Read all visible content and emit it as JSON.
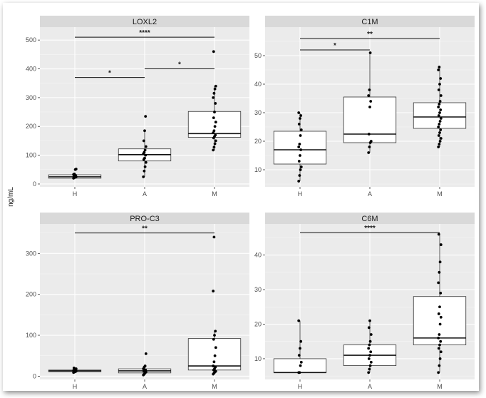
{
  "figure": {
    "ylabel": "ng/mL"
  },
  "chart_data": [
    {
      "type": "box",
      "title": "LOXL2",
      "categories": [
        "H",
        "A",
        "M"
      ],
      "ylim": [
        -10,
        545
      ],
      "yticks": [
        0,
        100,
        200,
        300,
        400,
        500
      ],
      "series": [
        {
          "category": "H",
          "q1": 20,
          "median": 25,
          "q3": 32,
          "whisker_low": 18,
          "whisker_high": 35,
          "points": [
            20,
            22,
            24,
            25,
            27,
            28,
            30,
            33,
            35,
            50,
            52
          ]
        },
        {
          "category": "A",
          "q1": 80,
          "median": 102,
          "q3": 122,
          "whisker_low": 25,
          "whisker_high": 185,
          "points": [
            25,
            45,
            60,
            75,
            85,
            90,
            100,
            105,
            110,
            118,
            130,
            150,
            185,
            235
          ]
        },
        {
          "category": "M",
          "q1": 162,
          "median": 175,
          "q3": 252,
          "whisker_low": 118,
          "whisker_high": 340,
          "points": [
            118,
            128,
            140,
            150,
            160,
            165,
            170,
            178,
            185,
            200,
            215,
            230,
            250,
            280,
            300,
            315,
            330,
            340,
            460
          ]
        }
      ],
      "significance": [
        {
          "from": "H",
          "to": "M",
          "label": "****",
          "y": 510
        },
        {
          "from": "H",
          "to": "A",
          "label": "*",
          "y": 370
        },
        {
          "from": "A",
          "to": "M",
          "label": "*",
          "y": 400
        }
      ]
    },
    {
      "type": "box",
      "title": "C1M",
      "categories": [
        "H",
        "A",
        "M"
      ],
      "ylim": [
        4,
        60
      ],
      "yticks": [
        10,
        20,
        30,
        40,
        50
      ],
      "series": [
        {
          "category": "H",
          "q1": 12,
          "median": 17,
          "q3": 23.5,
          "whisker_low": 6,
          "whisker_high": 30,
          "points": [
            6,
            8,
            10,
            11,
            13,
            15,
            17,
            18,
            19,
            22,
            24,
            26,
            28,
            29,
            30
          ]
        },
        {
          "category": "A",
          "q1": 19.5,
          "median": 22.5,
          "q3": 35.5,
          "whisker_low": 16,
          "whisker_high": 51,
          "points": [
            16,
            18,
            19.5,
            20,
            22.5,
            32,
            34,
            36,
            38,
            51
          ]
        },
        {
          "category": "M",
          "q1": 24.5,
          "median": 28.5,
          "q3": 33.5,
          "whisker_low": 18,
          "whisker_high": 46,
          "points": [
            18,
            19,
            20,
            21,
            22,
            23,
            24,
            25,
            26,
            27,
            28,
            29,
            30,
            31,
            32,
            33,
            34,
            36,
            38,
            40,
            42,
            45,
            46
          ]
        }
      ],
      "significance": [
        {
          "from": "H",
          "to": "M",
          "label": "**",
          "y": 56
        },
        {
          "from": "H",
          "to": "A",
          "label": "*",
          "y": 52
        }
      ]
    },
    {
      "type": "box",
      "title": "PRO-C3",
      "categories": [
        "H",
        "A",
        "M"
      ],
      "ylim": [
        -8,
        372
      ],
      "yticks": [
        0,
        100,
        200,
        300
      ],
      "series": [
        {
          "category": "H",
          "q1": 11,
          "median": 13,
          "q3": 15,
          "whisker_low": 9,
          "whisker_high": 18,
          "points": [
            9,
            10,
            11,
            12,
            12,
            13,
            13,
            14,
            15,
            16,
            18,
            20
          ]
        },
        {
          "category": "A",
          "q1": 8,
          "median": 13,
          "q3": 18,
          "whisker_low": 3,
          "whisker_high": 25,
          "points": [
            3,
            5,
            8,
            10,
            12,
            13,
            15,
            18,
            22,
            25,
            55
          ]
        },
        {
          "category": "M",
          "q1": 15,
          "median": 25,
          "q3": 92,
          "whisker_low": 5,
          "whisker_high": 110,
          "points": [
            5,
            8,
            10,
            12,
            15,
            18,
            22,
            25,
            35,
            50,
            70,
            90,
            100,
            110,
            208,
            340
          ]
        }
      ],
      "significance": [
        {
          "from": "H",
          "to": "M",
          "label": "**",
          "y": 350
        }
      ]
    },
    {
      "type": "box",
      "title": "C6M",
      "categories": [
        "H",
        "A",
        "M"
      ],
      "ylim": [
        4,
        49
      ],
      "yticks": [
        10,
        20,
        30,
        40
      ],
      "series": [
        {
          "category": "H",
          "q1": 6,
          "median": 6,
          "q3": 10,
          "whisker_low": 6,
          "whisker_high": 21,
          "points": [
            6,
            6,
            8,
            9,
            11,
            13,
            15,
            21
          ]
        },
        {
          "category": "A",
          "q1": 8,
          "median": 11,
          "q3": 14,
          "whisker_low": 6,
          "whisker_high": 21,
          "points": [
            6,
            7,
            8,
            9,
            10,
            11,
            12,
            13,
            14,
            15,
            17,
            19,
            21
          ]
        },
        {
          "category": "M",
          "q1": 14,
          "median": 16,
          "q3": 28,
          "whisker_low": 6,
          "whisker_high": 46,
          "points": [
            6,
            8,
            10,
            12,
            13,
            14,
            15,
            16,
            17,
            20,
            22,
            23,
            25,
            29,
            32,
            35,
            38,
            43,
            46
          ]
        }
      ],
      "significance": [
        {
          "from": "H",
          "to": "M",
          "label": "****",
          "y": 46.5
        }
      ]
    }
  ]
}
